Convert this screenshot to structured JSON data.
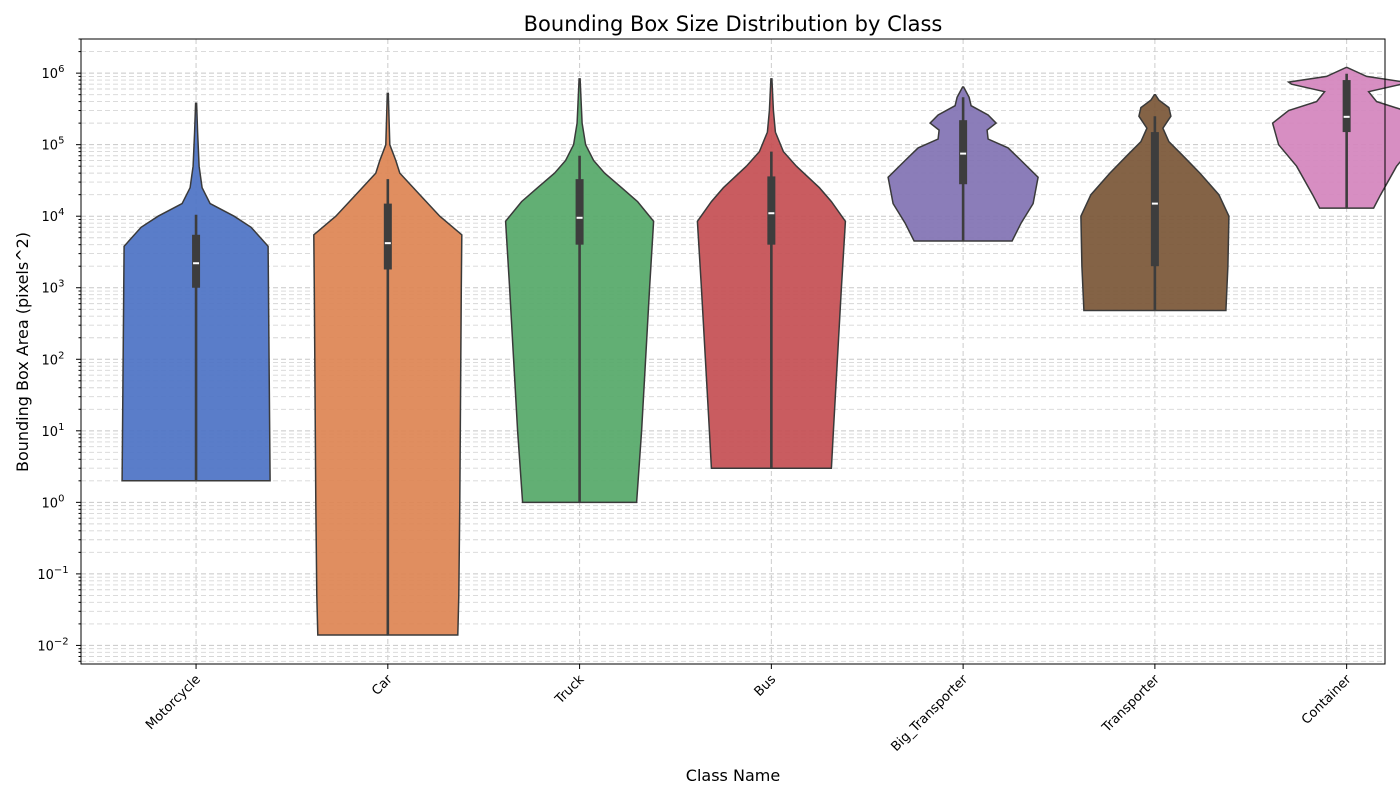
{
  "chart_data": {
    "type": "violin",
    "title": "Bounding Box Size Distribution by Class",
    "xlabel": "Class Name",
    "ylabel": "Bounding Box Area (pixels^2)",
    "yscale": "log",
    "ylim": [
      0.0055,
      3000000
    ],
    "y_ticks": [
      {
        "value": 0.01,
        "base": "10",
        "exp": "−2"
      },
      {
        "value": 0.1,
        "base": "10",
        "exp": "−1"
      },
      {
        "value": 1,
        "base": "10",
        "exp": "0"
      },
      {
        "value": 10,
        "base": "10",
        "exp": "1"
      },
      {
        "value": 100,
        "base": "10",
        "exp": "2"
      },
      {
        "value": 1000,
        "base": "10",
        "exp": "3"
      },
      {
        "value": 10000,
        "base": "10",
        "exp": "4"
      },
      {
        "value": 100000,
        "base": "10",
        "exp": "5"
      },
      {
        "value": 1000000,
        "base": "10",
        "exp": "6"
      }
    ],
    "grid": true,
    "categories": [
      "Motorcycle",
      "Car",
      "Truck",
      "Bus",
      "Big_Transporter",
      "Transporter",
      "Container"
    ],
    "series": [
      {
        "category": "Motorcycle",
        "color": "#4c72c4",
        "min": 2,
        "q1": 1000,
        "median": 2200,
        "q3": 5500,
        "whisker_high": 10500,
        "max": 380000,
        "profile": [
          [
            2,
            74
          ],
          [
            3800,
            72
          ],
          [
            7000,
            55
          ],
          [
            10000,
            38
          ],
          [
            15000,
            14
          ],
          [
            25000,
            6
          ],
          [
            50000,
            3
          ],
          [
            150000,
            1.5
          ],
          [
            380000,
            0.5
          ]
        ]
      },
      {
        "category": "Car",
        "color": "#dd8452",
        "min": 0.014,
        "q1": 1800,
        "median": 4200,
        "q3": 15000,
        "whisker_high": 33000,
        "max": 520000,
        "profile": [
          [
            0.014,
            70
          ],
          [
            0.05,
            71
          ],
          [
            1,
            72
          ],
          [
            100,
            73
          ],
          [
            1000,
            73.5
          ],
          [
            5500,
            74
          ],
          [
            10000,
            52
          ],
          [
            20000,
            32
          ],
          [
            40000,
            12
          ],
          [
            60000,
            8
          ],
          [
            100000,
            2
          ],
          [
            520000,
            0.5
          ]
        ]
      },
      {
        "category": "Truck",
        "color": "#55a868",
        "min": 1,
        "q1": 4000,
        "median": 9500,
        "q3": 33000,
        "whisker_high": 70000,
        "max": 830000,
        "profile": [
          [
            1,
            57
          ],
          [
            10,
            62
          ],
          [
            100,
            66
          ],
          [
            1000,
            70
          ],
          [
            8500,
            74
          ],
          [
            16000,
            58
          ],
          [
            25000,
            42
          ],
          [
            40000,
            25
          ],
          [
            60000,
            14
          ],
          [
            100000,
            6
          ],
          [
            200000,
            2.5
          ],
          [
            830000,
            0.5
          ]
        ]
      },
      {
        "category": "Bus",
        "color": "#c44e52",
        "min": 3,
        "q1": 4000,
        "median": 11000,
        "q3": 36000,
        "whisker_high": 80000,
        "max": 830000,
        "profile": [
          [
            3,
            60
          ],
          [
            10,
            62
          ],
          [
            100,
            66
          ],
          [
            1000,
            70
          ],
          [
            8500,
            74
          ],
          [
            16000,
            60
          ],
          [
            25000,
            48
          ],
          [
            50000,
            25
          ],
          [
            80000,
            12
          ],
          [
            150000,
            4
          ],
          [
            300000,
            2
          ],
          [
            830000,
            0.5
          ]
        ]
      },
      {
        "category": "Big_Transporter",
        "color": "#8172b3",
        "min": 4500,
        "q1": 28000,
        "median": 75000,
        "q3": 220000,
        "whisker_high": 460000,
        "max": 640000,
        "profile": [
          [
            4500,
            49
          ],
          [
            8000,
            58
          ],
          [
            15000,
            70
          ],
          [
            35000,
            75
          ],
          [
            60000,
            58
          ],
          [
            90000,
            45
          ],
          [
            120000,
            25
          ],
          [
            160000,
            24
          ],
          [
            200000,
            33
          ],
          [
            260000,
            25
          ],
          [
            350000,
            8
          ],
          [
            460000,
            6
          ],
          [
            640000,
            0.5
          ]
        ]
      },
      {
        "category": "Transporter",
        "color": "#7a5636",
        "min": 480,
        "q1": 2000,
        "median": 15000,
        "q3": 150000,
        "whisker_high": 250000,
        "max": 500000,
        "profile": [
          [
            480,
            71
          ],
          [
            2000,
            73
          ],
          [
            10000,
            74
          ],
          [
            20000,
            64
          ],
          [
            40000,
            45
          ],
          [
            70000,
            28
          ],
          [
            110000,
            14
          ],
          [
            170000,
            8
          ],
          [
            250000,
            16
          ],
          [
            330000,
            14
          ],
          [
            420000,
            4
          ],
          [
            500000,
            0.5
          ]
        ]
      },
      {
        "category": "Container",
        "color": "#d484bd",
        "min": 13000,
        "q1": 150000,
        "median": 245000,
        "q3": 800000,
        "whisker_high": 980000,
        "max": 1200000,
        "profile": [
          [
            13000,
            27
          ],
          [
            20000,
            34
          ],
          [
            50000,
            50
          ],
          [
            100000,
            68
          ],
          [
            200000,
            74
          ],
          [
            300000,
            58
          ],
          [
            400000,
            30
          ],
          [
            550000,
            22
          ],
          [
            700000,
            55
          ],
          [
            750000,
            58
          ],
          [
            900000,
            20
          ],
          [
            1200000,
            0.5
          ]
        ]
      }
    ]
  }
}
